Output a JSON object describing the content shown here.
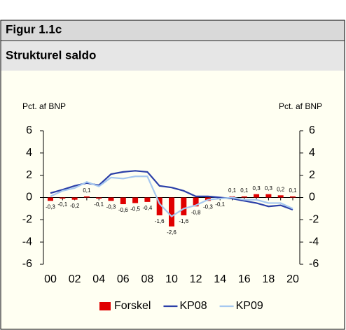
{
  "figure": "Figur 1.1c",
  "chart_data": {
    "type": "bar_line",
    "title": "Strukturel saldo",
    "y_label": "Pct. af BNP",
    "y2_label": "Pct. af BNP",
    "categories": [
      "00",
      null,
      "02",
      null,
      "04",
      null,
      "06",
      null,
      "08",
      null,
      "10",
      null,
      "12",
      null,
      "14",
      null,
      "16",
      null,
      "18",
      null,
      "20"
    ],
    "series": [
      {
        "name": "Forskel",
        "kind": "bar",
        "color": "#e00000",
        "values": [
          -0.3,
          -0.1,
          -0.2,
          0.1,
          -0.1,
          -0.3,
          -0.6,
          -0.5,
          -0.4,
          -1.6,
          -2.6,
          -1.6,
          -0.8,
          -0.3,
          -0.1,
          0.1,
          0.1,
          0.3,
          0.3,
          0.2,
          0.1
        ],
        "value_labels": [
          "-0,3",
          "-0,1",
          "-0,2",
          "0,1",
          "-0,1",
          "-0,3",
          "-0,6",
          "-0,5",
          "-0,4",
          "-1,6",
          "-2,6",
          "-1,6",
          "-0,8",
          "-0,3",
          "-0,1",
          "0,1",
          "0,1",
          "0,3",
          "0,3",
          "0,2",
          "0,1"
        ]
      },
      {
        "name": "KP08",
        "kind": "line",
        "color": "#2b3fa8",
        "values": [
          0.4,
          0.7,
          1.05,
          1.3,
          1.1,
          2.1,
          2.3,
          2.4,
          2.3,
          1.05,
          0.9,
          0.6,
          0.1,
          0.1,
          0.0,
          -0.1,
          -0.3,
          -0.5,
          -0.8,
          -0.7,
          -1.1
        ]
      },
      {
        "name": "KP09",
        "kind": "line",
        "color": "#a6c8f0",
        "values": [
          0.1,
          0.6,
          0.85,
          1.4,
          1.0,
          1.8,
          1.7,
          1.9,
          1.9,
          -0.55,
          -1.7,
          -1.0,
          -0.7,
          -0.2,
          -0.1,
          0.0,
          -0.2,
          -0.2,
          -0.5,
          -0.5,
          -1.0
        ]
      }
    ],
    "ylim": [
      -6,
      6
    ],
    "yticks": [
      -6,
      -4,
      -2,
      0,
      2,
      4,
      6
    ],
    "y2lim": [
      -6,
      6
    ],
    "y2ticks": [
      -6,
      -4,
      -2,
      0,
      2,
      4,
      6
    ],
    "legend": "bottom"
  }
}
